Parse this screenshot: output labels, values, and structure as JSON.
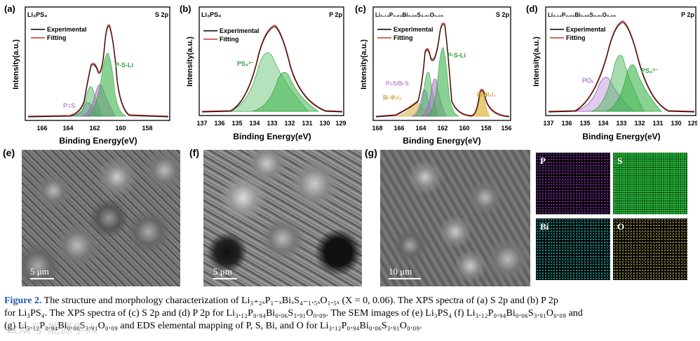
{
  "xps_panels": [
    {
      "id": "a",
      "tag": "(a)",
      "sample": "Li₃PS₄",
      "orbital": "S 2p",
      "ylabel": "Intensity(a.u.)",
      "xlabel": "Binding Energy(eV)",
      "ticks": [
        "166",
        "164",
        "162",
        "160",
        "158"
      ],
      "legend": [
        "Experimental",
        "Fitting"
      ],
      "peak_labels": [
        {
          "text": "P-S-Li",
          "color": "#2e9e3e"
        },
        {
          "text": "P=S",
          "color": "#9b59b6"
        }
      ]
    },
    {
      "id": "b",
      "tag": "(b)",
      "sample": "Li₃PS₄",
      "orbital": "P 2p",
      "ylabel": "Intensity(a.u.)",
      "xlabel": "Binding Energy(eV)",
      "ticks": [
        "137",
        "136",
        "135",
        "134",
        "133",
        "132",
        "131",
        "130",
        "129"
      ],
      "legend": [
        "Experimental",
        "Fitting"
      ],
      "peak_labels": [
        {
          "text": "PS₄³⁻",
          "color": "#2e9e3e"
        }
      ]
    },
    {
      "id": "c",
      "tag": "(c)",
      "sample": "Li₃.₁₂P₀.₉₄Bi₀.₀₆S₃.₉₁O₀.₀₉",
      "orbital": "S 2p",
      "ylabel": "Intensity(a.u.)",
      "xlabel": "Binding Energy(eV)",
      "ticks": [
        "168",
        "166",
        "164",
        "162",
        "160",
        "158",
        "156"
      ],
      "legend": [
        "Experimental",
        "Fitting"
      ],
      "peak_labels": [
        {
          "text": "P-S-Li",
          "color": "#2e9e3e"
        },
        {
          "text": "P=S/Bi-S",
          "color": "#9b59b6"
        },
        {
          "text": "Bi 4f₇/₂",
          "color": "#c9a227"
        },
        {
          "text": "Bi 4f₅/₂",
          "color": "#c9a227"
        }
      ]
    },
    {
      "id": "d",
      "tag": "(d)",
      "sample": "Li₃.₁₂P₀.₉₄Bi₀.₀₆S₃.₉₁O₀.₀₉",
      "orbital": "P 2p",
      "ylabel": "Intensity(a.u.)",
      "xlabel": "Binding Energy(eV)",
      "ticks": [
        "137",
        "136",
        "135",
        "134",
        "133",
        "132",
        "131",
        "130",
        "129"
      ],
      "legend": [
        "Experimental",
        "Fitting"
      ],
      "peak_labels": [
        {
          "text": "POₓ",
          "color": "#9b59b6"
        },
        {
          "text": "PS₄³⁻",
          "color": "#2e9e3e"
        }
      ]
    }
  ],
  "sem": {
    "e": {
      "tag": "(e)",
      "scale": "5 μm"
    },
    "f": {
      "tag": "(f)",
      "scale": "5 μm"
    },
    "g": {
      "tag": "(g)",
      "scale": "10 μm"
    }
  },
  "eds_maps": [
    {
      "element": "P",
      "color": "#a040c0"
    },
    {
      "element": "S",
      "color": "#2ecc40"
    },
    {
      "element": "Bi",
      "color": "#20b2aa"
    },
    {
      "element": "O",
      "color": "#c8c060"
    }
  ],
  "caption": {
    "fig_label": "Figure 2.",
    "line1": " The structure and morphology characterization of Li₃₊₂ₓP₁₋ₓBiₓS₄₋₁.₅ₓO₁.₅ₓ (X = 0, 0.06). The XPS spectra of (a) S 2p and (b) P 2p",
    "line2": "for Li₃PS₄. The XPS spectra of (c) S 2p and (d) P 2p for Li₃.₁₂P₀.₉₄Bi₀.₀₆S₃.₉₁O₀.₀₉. The SEM images of (e) Li₃PS₄ (f) Li₃.₁₂P₀.₉₄Bi₀.₀₆S₃.₉₁O₀.₀₉ and",
    "line3": "(g) Li₃.₁₂P₀.₉₄Bi₀.₀₆S₃.₉₁O₀.₀₉ and EDS elemental mapping of P, S, Bi, and O for Li₃.₁₂P₀.₉₄Bi₀.₀₆S₃.₉₁O₀.₀₉."
  },
  "watermark": "公众号·能源学人",
  "colors": {
    "experimental": "#000000",
    "fitting": "#c0392b",
    "green": "#2e9e3e",
    "purple": "#9b59b6",
    "gold": "#d4a72c"
  }
}
